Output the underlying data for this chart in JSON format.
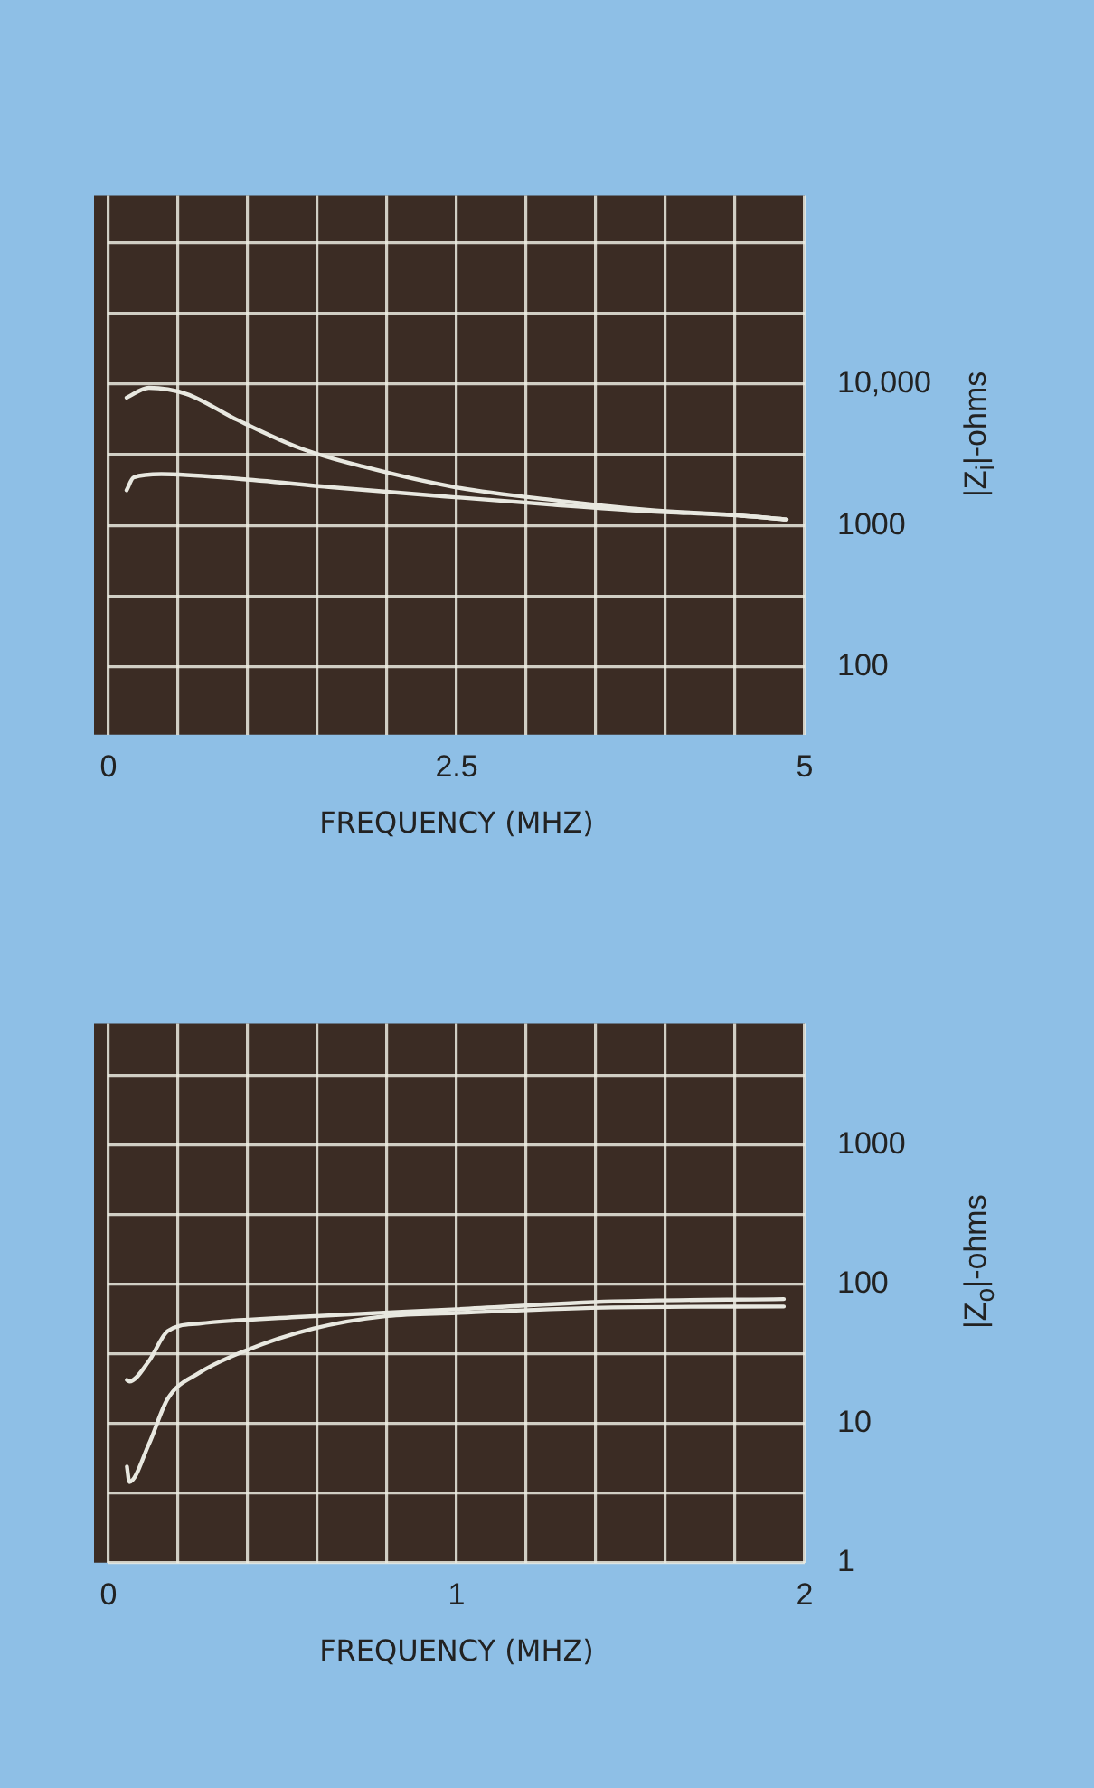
{
  "chart_data": [
    {
      "type": "line",
      "xlabel": "FREQUENCY (MHZ)",
      "ylabel": "|Z$_{i}$|-ohms",
      "log": "y",
      "grid": true,
      "legend": false,
      "marker": "none",
      "xlim": [
        0,
        5
      ],
      "xticks": [
        0,
        {
          "value": 0.5,
          "label": null
        },
        {
          "value": 1,
          "label": null
        },
        {
          "value": 1.5,
          "label": null
        },
        {
          "value": 2,
          "label": null
        },
        2.5,
        {
          "value": 3,
          "label": null
        },
        {
          "value": 3.5,
          "label": null
        },
        {
          "value": 4,
          "label": null
        },
        {
          "value": 4.5,
          "label": null
        },
        5
      ],
      "ylim": [
        33,
        215000
      ],
      "yticks": [
        100,
        {
          "value": 316,
          "label": null
        },
        1000,
        {
          "value": 3162,
          "label": null
        },
        {
          "value": 10000,
          "label": "10,000"
        },
        {
          "value": 31623,
          "label": null
        },
        {
          "value": 100000,
          "label": null
        }
      ],
      "series": [
        {
          "color": "#e8e8e0",
          "x": [
            0.13,
            0.29,
            0.56,
            0.92,
            1.38,
            1.83,
            2.49,
            3.19,
            3.87,
            4.55,
            4.87
          ],
          "values": [
            8000,
            9400,
            8500,
            5600,
            3500,
            2600,
            1860,
            1510,
            1290,
            1170,
            1100
          ]
        },
        {
          "color": "#e8e8e0",
          "x": [
            0.13,
            0.18,
            0.38,
            0.92,
            1.6,
            2.49,
            3.19,
            3.87,
            4.55,
            4.87
          ],
          "values": [
            1770,
            2180,
            2300,
            2140,
            1860,
            1580,
            1400,
            1260,
            1170,
            1100
          ]
        }
      ]
    },
    {
      "type": "line",
      "xlabel": "FREQUENCY (MHZ)",
      "ylabel": "|Z$_{o}$|-ohms",
      "log": "y",
      "grid": true,
      "legend": false,
      "marker": "none",
      "xlim": [
        0,
        2
      ],
      "xticks": [
        0,
        {
          "value": 0.2,
          "label": null
        },
        {
          "value": 0.4,
          "label": null
        },
        {
          "value": 0.6,
          "label": null
        },
        {
          "value": 0.8,
          "label": null
        },
        1,
        {
          "value": 1.2,
          "label": null
        },
        {
          "value": 1.4,
          "label": null
        },
        {
          "value": 1.6,
          "label": null
        },
        {
          "value": 1.8,
          "label": null
        },
        2
      ],
      "ylim": [
        1,
        7400
      ],
      "yticks": [
        1,
        {
          "value": 3.16,
          "label": null
        },
        10,
        {
          "value": 31.6,
          "label": null
        },
        100,
        {
          "value": 316,
          "label": null
        },
        1000,
        {
          "value": 3162,
          "label": null
        }
      ],
      "series": [
        {
          "color": "#e8e8e0",
          "x": [
            0.053,
            0.06,
            0.116,
            0.17,
            0.26,
            0.54,
            1.0,
            1.45,
            1.94
          ],
          "values": [
            20.5,
            20,
            28,
            46,
            52,
            58,
            66,
            75,
            78
          ]
        },
        {
          "color": "#e8e8e0",
          "x": [
            0.053,
            0.06,
            0.116,
            0.17,
            0.26,
            0.39,
            0.59,
            0.8,
            1.0,
            1.45,
            1.94
          ],
          "values": [
            4.9,
            3.8,
            7.1,
            15,
            23,
            33,
            48,
            59,
            62,
            68,
            69
          ]
        }
      ]
    }
  ]
}
